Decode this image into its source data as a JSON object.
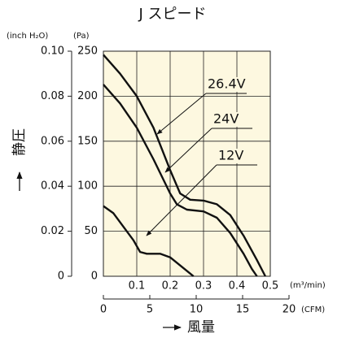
{
  "chart_data": {
    "type": "line",
    "title": "J スピード",
    "y_label": "静圧",
    "x_label": "風量",
    "y_unit": "(Pa)",
    "y2_unit": "(inch H₂O)",
    "x_unit": "(m³/min)",
    "x2_unit": "(CFM)",
    "xlim": [
      0,
      0.5
    ],
    "xticks": [
      0.1,
      0.2,
      0.3,
      0.4,
      0.5
    ],
    "x2lim": [
      0,
      20
    ],
    "x2ticks": [
      0,
      5,
      10,
      15,
      20
    ],
    "ylim": [
      0,
      250
    ],
    "yticks": [
      0,
      50,
      100,
      150,
      200,
      250
    ],
    "y2lim": [
      0,
      0.1
    ],
    "y2ticks": [
      0,
      0.02,
      0.04,
      0.06,
      0.08,
      {
        "value": 0.1,
        "label": "0.10"
      }
    ],
    "grid": true,
    "background": "#fdf8e0",
    "series": [
      {
        "name": "26.4V",
        "color": "#111111",
        "x": [
          0,
          0.05,
          0.1,
          0.15,
          0.2,
          0.23,
          0.26,
          0.3,
          0.34,
          0.38,
          0.42,
          0.46,
          0.485
        ],
        "values": [
          246,
          225,
          200,
          165,
          118,
          92,
          85,
          84,
          80,
          68,
          45,
          18,
          0
        ]
      },
      {
        "name": "24V",
        "color": "#111111",
        "x": [
          0,
          0.05,
          0.1,
          0.15,
          0.2,
          0.22,
          0.25,
          0.3,
          0.34,
          0.38,
          0.42,
          0.445,
          0.46
        ],
        "values": [
          213,
          192,
          165,
          130,
          92,
          80,
          74,
          72,
          65,
          48,
          25,
          8,
          0
        ]
      },
      {
        "name": "12V",
        "color": "#111111",
        "x": [
          0,
          0.03,
          0.06,
          0.09,
          0.11,
          0.13,
          0.17,
          0.2,
          0.23,
          0.26,
          0.27
        ],
        "values": [
          78,
          70,
          55,
          40,
          27,
          25,
          25,
          21,
          12,
          3,
          0
        ]
      }
    ]
  }
}
